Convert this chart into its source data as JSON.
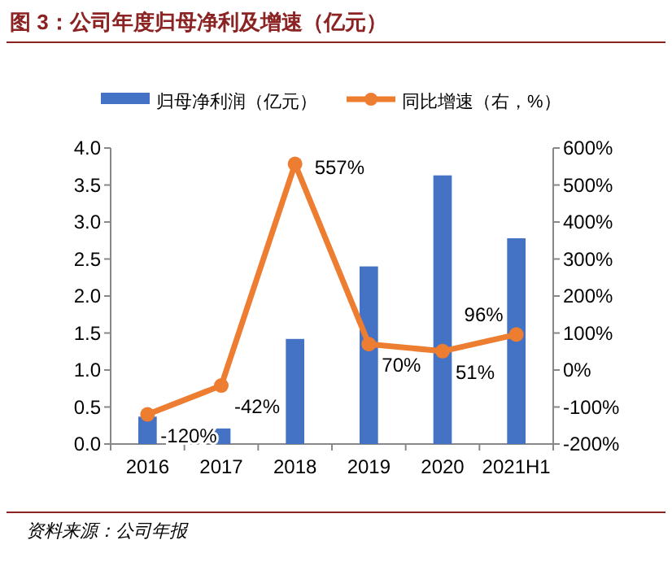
{
  "chart_data": {
    "type": "bar",
    "title": "图 3：公司年度归母净利及增速（亿元）",
    "categories": [
      "2016",
      "2017",
      "2018",
      "2019",
      "2020",
      "2021H1"
    ],
    "series": [
      {
        "name": "归母净利润（亿元）",
        "color": "#4472c4",
        "values": [
          0.37,
          0.21,
          1.42,
          2.4,
          3.63,
          2.78
        ]
      },
      {
        "name": "同比增速（右，%）",
        "type": "line",
        "axis": "y2",
        "color": "#ed7d31",
        "marker": "circle",
        "values": [
          -120,
          -42,
          557,
          70,
          51,
          96
        ],
        "value_labels": [
          "-120%",
          "-42%",
          "557%",
          "70%",
          "51%",
          "96%"
        ]
      }
    ],
    "ylim": [
      0,
      4
    ],
    "yticks": [
      {
        "value": 0,
        "label": "0.0"
      },
      {
        "value": 0.5,
        "label": "0.5"
      },
      {
        "value": 1,
        "label": "1.0"
      },
      {
        "value": 1.5,
        "label": "1.5"
      },
      {
        "value": 2,
        "label": "2.0"
      },
      {
        "value": 2.5,
        "label": "2.5"
      },
      {
        "value": 3,
        "label": "3.0"
      },
      {
        "value": 3.5,
        "label": "3.5"
      },
      {
        "value": 4,
        "label": "4.0"
      }
    ],
    "y2lim": [
      -200,
      600
    ],
    "y2ticks": [
      {
        "value": -200,
        "label": "-200%"
      },
      {
        "value": -100,
        "label": "-100%"
      },
      {
        "value": 0,
        "label": "0%"
      },
      {
        "value": 100,
        "label": "100%"
      },
      {
        "value": 200,
        "label": "200%"
      },
      {
        "value": 300,
        "label": "300%"
      },
      {
        "value": 400,
        "label": "400%"
      },
      {
        "value": 500,
        "label": "500%"
      },
      {
        "value": 600,
        "label": "600%"
      }
    ],
    "legend": "top",
    "grid": false,
    "annotations": [
      "资料来源：公司年报"
    ]
  }
}
